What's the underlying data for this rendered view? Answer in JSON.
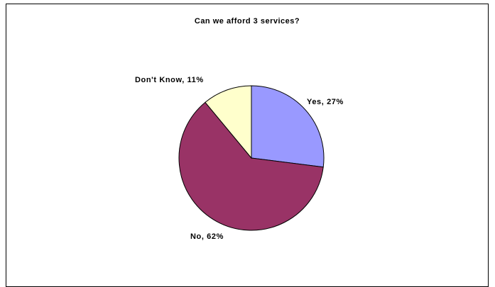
{
  "chart_data": {
    "type": "pie",
    "title": "Can we afford 3 services?",
    "slices": [
      {
        "label": "Yes, 27%",
        "value": 27,
        "color": "#9999FF"
      },
      {
        "label": "No, 62%",
        "value": 62,
        "color": "#993366"
      },
      {
        "label": "Don't Know, 11%",
        "value": 11,
        "color": "#FFFFCC"
      }
    ],
    "start_angle_deg": 0,
    "direction": "clockwise",
    "legend": "none"
  }
}
